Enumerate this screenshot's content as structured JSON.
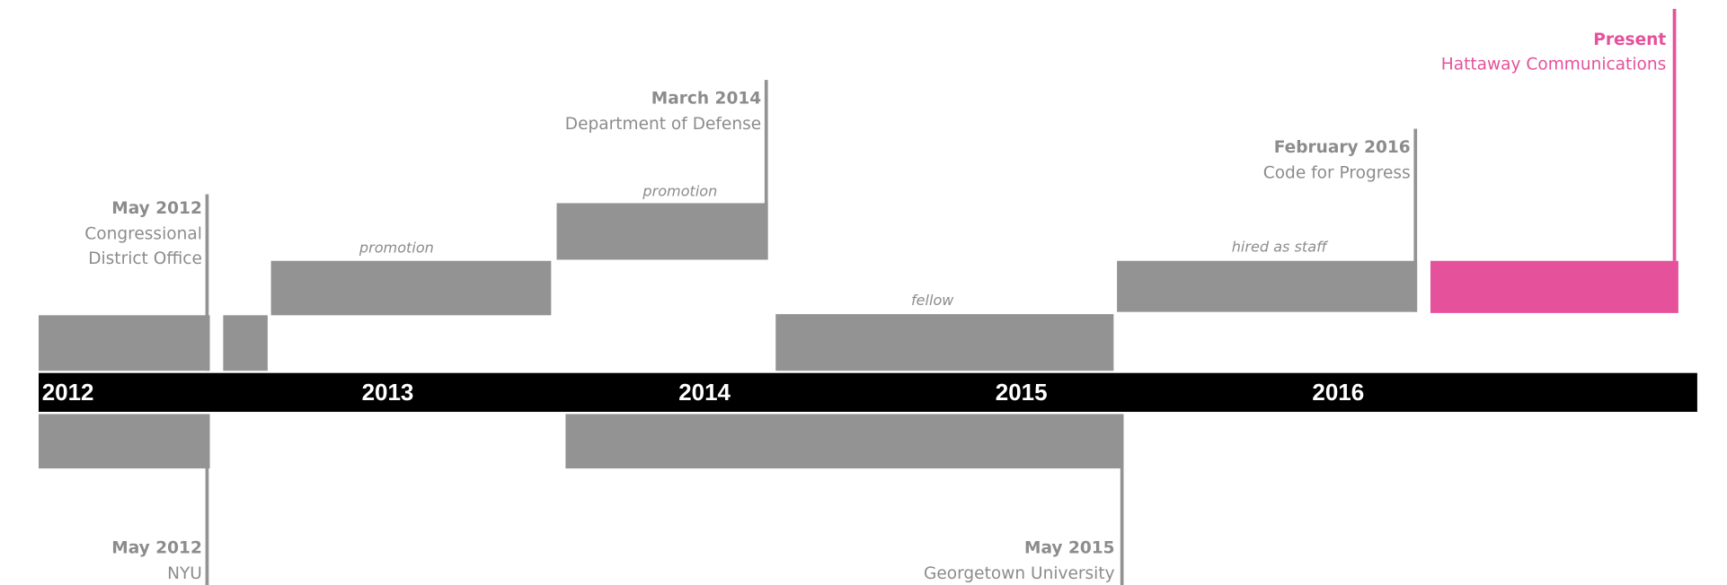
{
  "years": [
    "2012",
    "2013",
    "2014",
    "2015",
    "2016"
  ],
  "milestones_above": [
    {
      "date": "May 2012",
      "organization": [
        "Congressional",
        "District Office"
      ]
    },
    {
      "date": "March 2014",
      "organization": [
        "Department of Defense"
      ]
    },
    {
      "date": "February 2016",
      "organization": [
        "Code for Progress"
      ]
    },
    {
      "date": "Present",
      "organization": [
        "Hattaway Communications"
      ]
    }
  ],
  "bar_notes": [
    "promotion",
    "promotion",
    "fellow",
    "hired as staff"
  ],
  "milestones_below": [
    {
      "date": "May 2012",
      "organization": [
        "NYU"
      ]
    },
    {
      "date": "May 2015",
      "organization": [
        "Georgetown University"
      ]
    }
  ]
}
